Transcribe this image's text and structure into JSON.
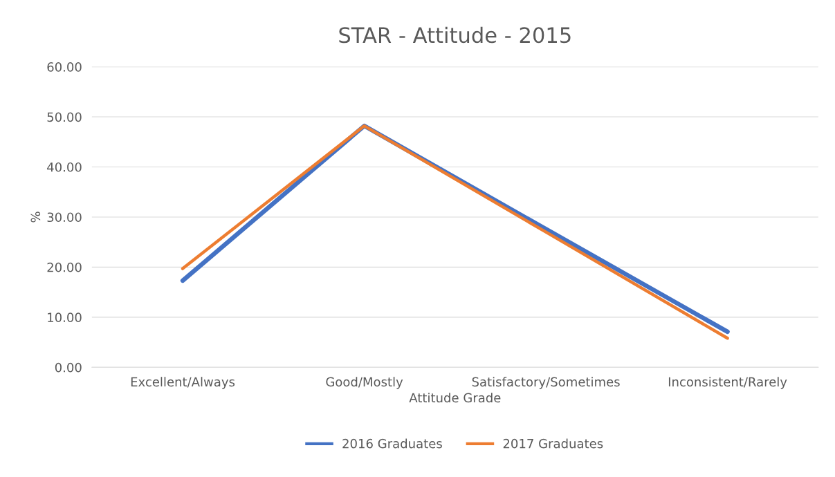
{
  "chart_data": {
    "type": "line",
    "title": "STAR - Attitude - 2015",
    "xlabel": "Attitude Grade",
    "ylabel": "%",
    "categories": [
      "Excellent/Always",
      "Good/Mostly",
      "Satisfactory/Sometimes",
      "Inconsistent/Rarely"
    ],
    "series": [
      {
        "name": "2016 Graduates",
        "color": "#4472c4",
        "values": [
          17.3,
          48.2,
          27.6,
          7.1
        ]
      },
      {
        "name": "2017 Graduates",
        "color": "#ed7d31",
        "values": [
          19.7,
          48.2,
          27.0,
          5.8
        ]
      }
    ],
    "ylim": [
      0,
      60
    ],
    "yticks": [
      {
        "value": 0,
        "label": "0.00"
      },
      {
        "value": 10,
        "label": "10.00"
      },
      {
        "value": 20,
        "label": "20.00"
      },
      {
        "value": 30,
        "label": "30.00"
      },
      {
        "value": 40,
        "label": "40.00"
      },
      {
        "value": 50,
        "label": "50.00"
      },
      {
        "value": 60,
        "label": "60.00"
      }
    ],
    "grid": "y",
    "legend": "bottom",
    "marker": "none",
    "line_style": "solid"
  }
}
